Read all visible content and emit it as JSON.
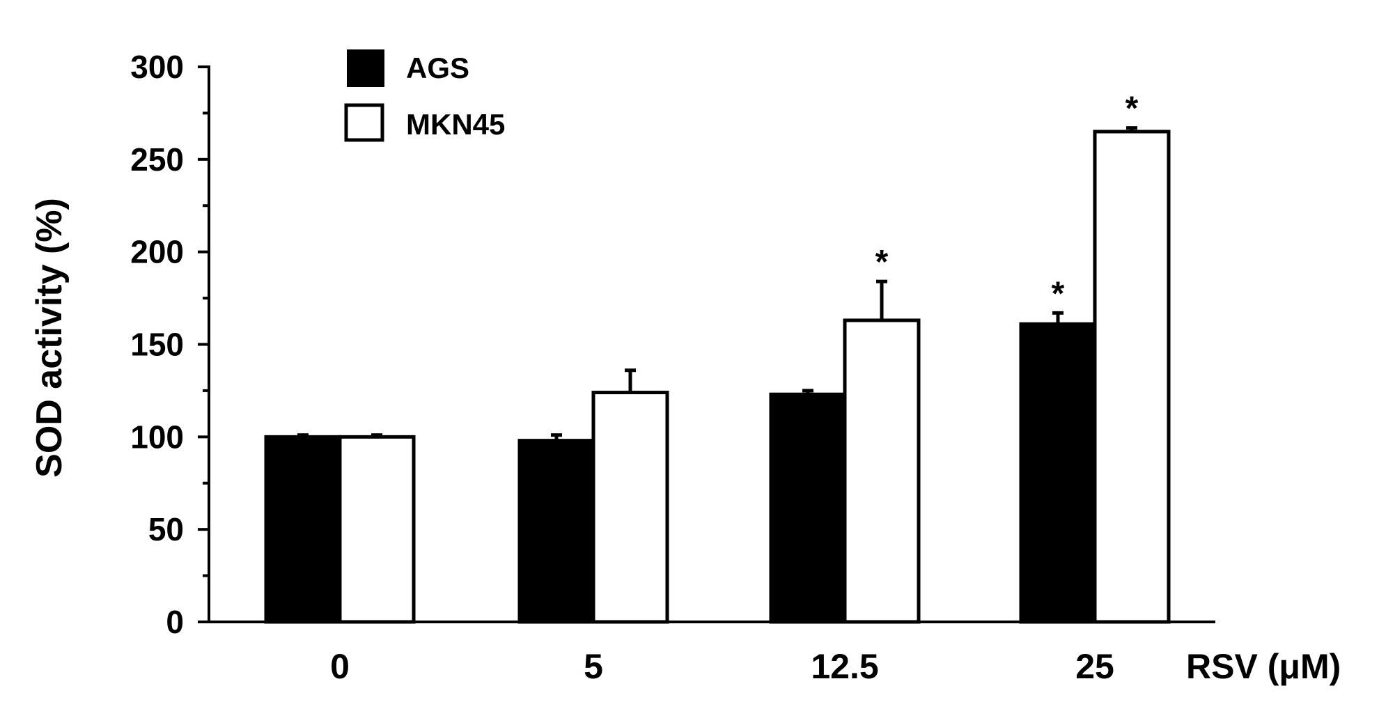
{
  "chart_data": {
    "type": "bar",
    "title": "",
    "xlabel": "RSV (μM)",
    "ylabel": "SOD activity (%)",
    "categories": [
      "0",
      "5",
      "12.5",
      "25"
    ],
    "ylim": [
      0,
      300
    ],
    "yticks": [
      0,
      50,
      100,
      150,
      200,
      250,
      300
    ],
    "legend_position": "top-left",
    "series": [
      {
        "name": "AGS",
        "fill": "#000000",
        "values": [
          100,
          98,
          123,
          161
        ],
        "errors": [
          1,
          3,
          2,
          6
        ],
        "significant": [
          false,
          false,
          false,
          true
        ]
      },
      {
        "name": "MKN45",
        "fill": "#ffffff",
        "values": [
          100,
          124,
          163,
          265
        ],
        "errors": [
          1,
          12,
          21,
          2
        ],
        "significant": [
          false,
          false,
          true,
          true
        ]
      }
    ],
    "significance_marker": "*"
  }
}
